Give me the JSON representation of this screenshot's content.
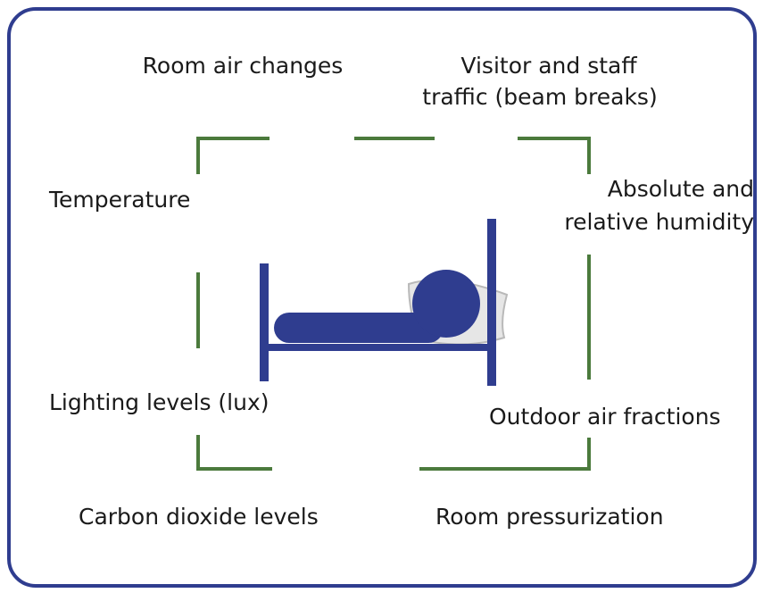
{
  "labels": {
    "room_air_changes": "Room air changes",
    "visitor_traffic": [
      "Visitor and staff",
      "traffic (beam breaks)"
    ],
    "temperature": "Temperature",
    "humidity": [
      "Absolute and",
      "relative humidity"
    ],
    "lighting": "Lighting levels (lux)",
    "outdoor_air": "Outdoor air fractions",
    "carbon_dioxide": "Carbon dioxide levels",
    "pressurization": "Room pressurization"
  }
}
